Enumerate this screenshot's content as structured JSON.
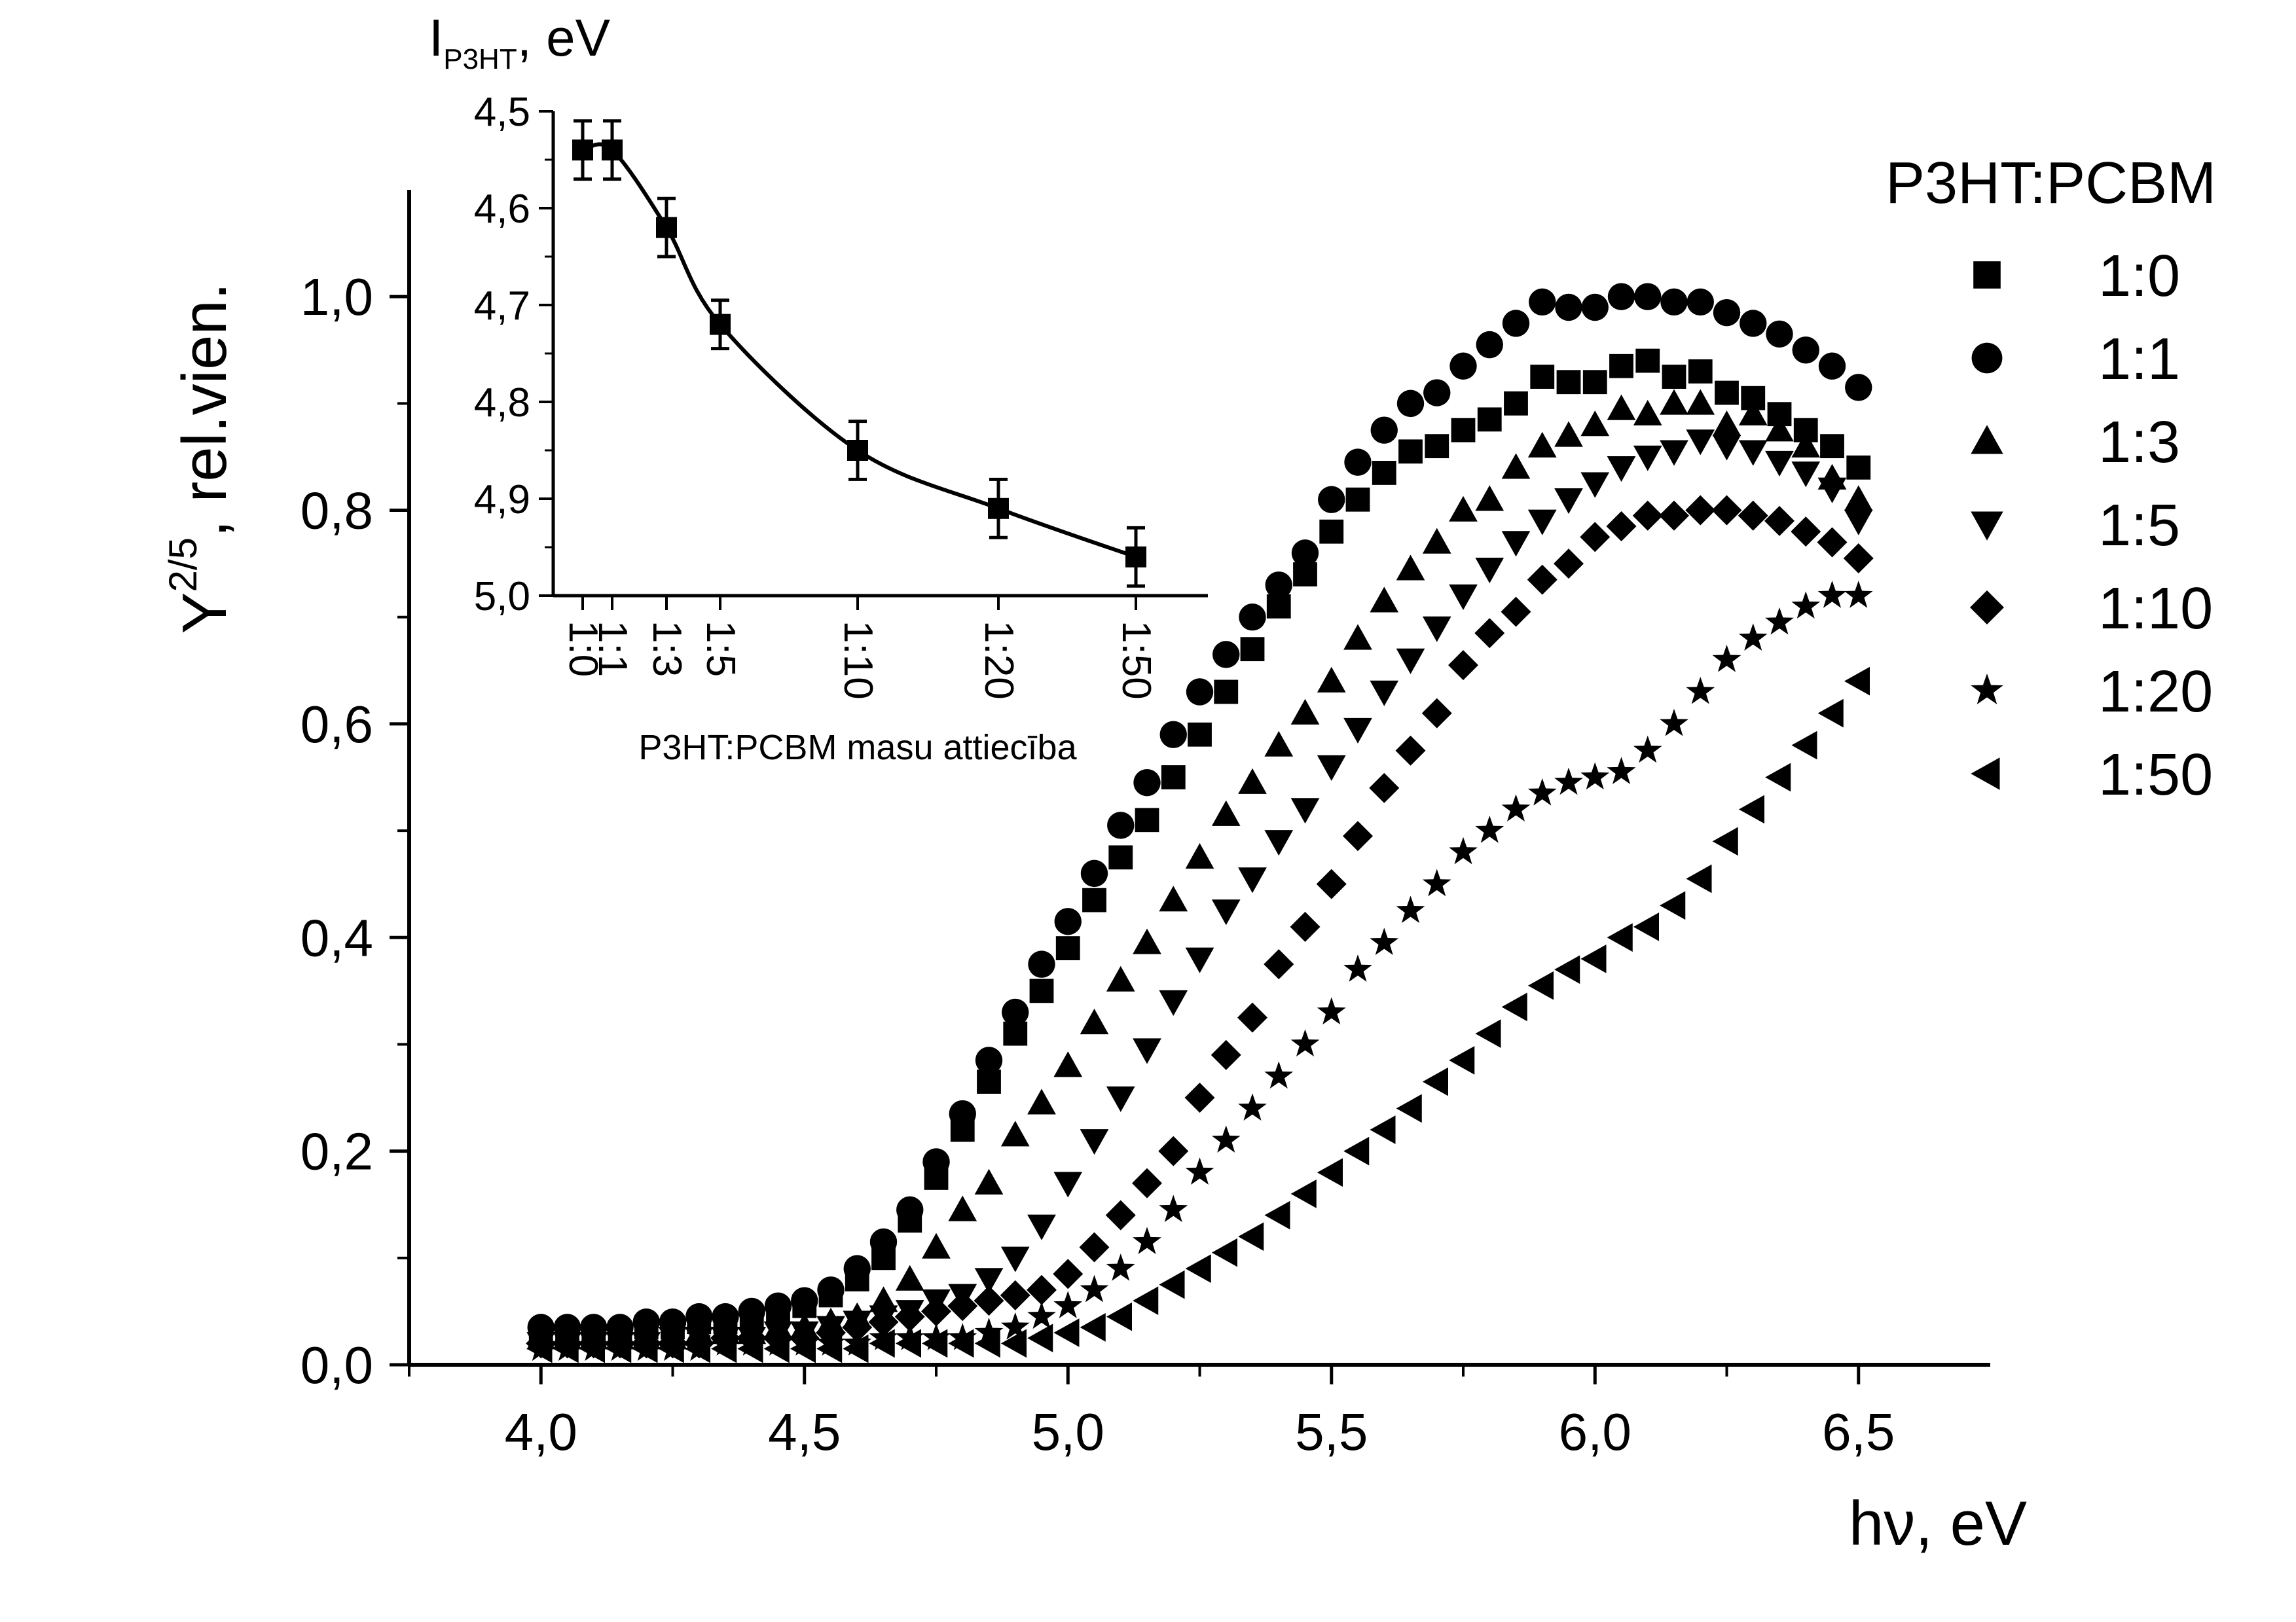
{
  "chart_data": {
    "main": {
      "type": "scatter",
      "xlabel": "hν, eV",
      "ylabel_main": "Y",
      "ylabel_sup": "2/5",
      "ylabel_rest": ", rel.vien.",
      "xlim": [
        3.75,
        6.75
      ],
      "ylim": [
        0.0,
        1.1
      ],
      "x_ticks": [
        4.0,
        4.5,
        5.0,
        5.5,
        6.0,
        6.5
      ],
      "x_tick_labels": [
        "4,0",
        "4,5",
        "5,0",
        "5,5",
        "6,0",
        "6,5"
      ],
      "y_ticks": [
        0.0,
        0.2,
        0.4,
        0.6,
        0.8,
        1.0
      ],
      "y_tick_labels": [
        "0,0",
        "0,2",
        "0,4",
        "0,6",
        "0,8",
        "1,0"
      ],
      "legend_title": "P3HT:PCBM",
      "legend_position": "right",
      "series": [
        {
          "name": "1:0",
          "marker": "square",
          "x": [
            4.0,
            4.05,
            4.1,
            4.15,
            4.2,
            4.25,
            4.3,
            4.35,
            4.4,
            4.45,
            4.5,
            4.55,
            4.6,
            4.65,
            4.7,
            4.75,
            4.8,
            4.85,
            4.9,
            4.95,
            5.0,
            5.05,
            5.1,
            5.15,
            5.2,
            5.25,
            5.3,
            5.35,
            5.4,
            5.45,
            5.5,
            5.55,
            5.6,
            5.65,
            5.7,
            5.75,
            5.8,
            5.85,
            5.9,
            5.95,
            6.0,
            6.05,
            6.1,
            6.15,
            6.2,
            6.25,
            6.3,
            6.35,
            6.4,
            6.45,
            6.5
          ],
          "y": [
            0.03,
            0.03,
            0.03,
            0.03,
            0.035,
            0.035,
            0.04,
            0.04,
            0.045,
            0.05,
            0.055,
            0.065,
            0.08,
            0.1,
            0.135,
            0.175,
            0.22,
            0.265,
            0.31,
            0.35,
            0.39,
            0.435,
            0.475,
            0.51,
            0.55,
            0.59,
            0.63,
            0.67,
            0.71,
            0.74,
            0.78,
            0.81,
            0.835,
            0.855,
            0.86,
            0.875,
            0.885,
            0.9,
            0.925,
            0.92,
            0.92,
            0.935,
            0.94,
            0.925,
            0.93,
            0.91,
            0.905,
            0.89,
            0.875,
            0.86,
            0.84
          ]
        },
        {
          "name": "1:1",
          "marker": "circle",
          "x": [
            4.0,
            4.05,
            4.1,
            4.15,
            4.2,
            4.25,
            4.3,
            4.35,
            4.4,
            4.45,
            4.5,
            4.55,
            4.6,
            4.65,
            4.7,
            4.75,
            4.8,
            4.85,
            4.9,
            4.95,
            5.0,
            5.05,
            5.1,
            5.15,
            5.2,
            5.25,
            5.3,
            5.35,
            5.4,
            5.45,
            5.5,
            5.55,
            5.6,
            5.65,
            5.7,
            5.75,
            5.8,
            5.85,
            5.9,
            5.95,
            6.0,
            6.05,
            6.1,
            6.15,
            6.2,
            6.25,
            6.3,
            6.35,
            6.4,
            6.45,
            6.5
          ],
          "y": [
            0.035,
            0.035,
            0.035,
            0.035,
            0.04,
            0.04,
            0.045,
            0.045,
            0.05,
            0.055,
            0.06,
            0.07,
            0.09,
            0.115,
            0.145,
            0.19,
            0.235,
            0.285,
            0.33,
            0.375,
            0.415,
            0.46,
            0.505,
            0.545,
            0.59,
            0.63,
            0.665,
            0.7,
            0.73,
            0.76,
            0.81,
            0.845,
            0.875,
            0.9,
            0.91,
            0.935,
            0.955,
            0.975,
            0.995,
            0.99,
            0.99,
            1.0,
            1.0,
            0.995,
            0.995,
            0.985,
            0.975,
            0.965,
            0.95,
            0.935,
            0.915
          ]
        },
        {
          "name": "1:3",
          "marker": "triangle-up",
          "x": [
            4.0,
            4.05,
            4.1,
            4.15,
            4.2,
            4.25,
            4.3,
            4.35,
            4.4,
            4.45,
            4.5,
            4.55,
            4.6,
            4.65,
            4.7,
            4.75,
            4.8,
            4.85,
            4.9,
            4.95,
            5.0,
            5.05,
            5.1,
            5.15,
            5.2,
            5.25,
            5.3,
            5.35,
            5.4,
            5.45,
            5.5,
            5.55,
            5.6,
            5.65,
            5.7,
            5.75,
            5.8,
            5.85,
            5.9,
            5.95,
            6.0,
            6.05,
            6.1,
            6.15,
            6.2,
            6.25,
            6.3,
            6.35,
            6.4,
            6.45,
            6.5
          ],
          "y": [
            0.025,
            0.025,
            0.025,
            0.025,
            0.025,
            0.025,
            0.03,
            0.03,
            0.03,
            0.035,
            0.035,
            0.04,
            0.045,
            0.06,
            0.08,
            0.11,
            0.145,
            0.17,
            0.215,
            0.245,
            0.28,
            0.32,
            0.36,
            0.395,
            0.435,
            0.475,
            0.515,
            0.545,
            0.58,
            0.61,
            0.64,
            0.68,
            0.715,
            0.745,
            0.77,
            0.8,
            0.81,
            0.84,
            0.86,
            0.87,
            0.88,
            0.895,
            0.89,
            0.9,
            0.9,
            0.88,
            0.89,
            0.875,
            0.86,
            0.83,
            0.81
          ]
        },
        {
          "name": "1:5",
          "marker": "triangle-down",
          "x": [
            4.0,
            4.05,
            4.1,
            4.15,
            4.2,
            4.25,
            4.3,
            4.35,
            4.4,
            4.45,
            4.5,
            4.55,
            4.6,
            4.65,
            4.7,
            4.75,
            4.8,
            4.85,
            4.9,
            4.95,
            5.0,
            5.05,
            5.1,
            5.15,
            5.2,
            5.25,
            5.3,
            5.35,
            5.4,
            5.45,
            5.5,
            5.55,
            5.6,
            5.65,
            5.7,
            5.75,
            5.8,
            5.85,
            5.9,
            5.95,
            6.0,
            6.05,
            6.1,
            6.15,
            6.2,
            6.25,
            6.3,
            6.35,
            6.4,
            6.45,
            6.5
          ],
          "y": [
            0.02,
            0.02,
            0.02,
            0.02,
            0.02,
            0.025,
            0.025,
            0.025,
            0.025,
            0.03,
            0.03,
            0.035,
            0.04,
            0.045,
            0.05,
            0.06,
            0.065,
            0.08,
            0.1,
            0.13,
            0.17,
            0.21,
            0.25,
            0.295,
            0.34,
            0.38,
            0.425,
            0.455,
            0.49,
            0.52,
            0.56,
            0.595,
            0.63,
            0.66,
            0.69,
            0.72,
            0.745,
            0.77,
            0.79,
            0.81,
            0.825,
            0.84,
            0.85,
            0.855,
            0.865,
            0.86,
            0.855,
            0.845,
            0.835,
            0.82,
            0.79
          ]
        },
        {
          "name": "1:10",
          "marker": "diamond",
          "x": [
            4.0,
            4.05,
            4.1,
            4.15,
            4.2,
            4.25,
            4.3,
            4.35,
            4.4,
            4.45,
            4.5,
            4.55,
            4.6,
            4.65,
            4.7,
            4.75,
            4.8,
            4.85,
            4.9,
            4.95,
            5.0,
            5.05,
            5.1,
            5.15,
            5.2,
            5.25,
            5.3,
            5.35,
            5.4,
            5.45,
            5.5,
            5.55,
            5.6,
            5.65,
            5.7,
            5.75,
            5.8,
            5.85,
            5.9,
            5.95,
            6.0,
            6.05,
            6.1,
            6.15,
            6.2,
            6.25,
            6.3,
            6.35,
            6.4,
            6.45,
            6.5
          ],
          "y": [
            0.02,
            0.02,
            0.02,
            0.02,
            0.02,
            0.02,
            0.02,
            0.025,
            0.025,
            0.025,
            0.025,
            0.03,
            0.035,
            0.04,
            0.045,
            0.05,
            0.055,
            0.06,
            0.065,
            0.07,
            0.085,
            0.11,
            0.14,
            0.17,
            0.2,
            0.25,
            0.29,
            0.325,
            0.375,
            0.41,
            0.45,
            0.495,
            0.54,
            0.575,
            0.61,
            0.655,
            0.685,
            0.705,
            0.735,
            0.75,
            0.775,
            0.785,
            0.795,
            0.795,
            0.8,
            0.8,
            0.795,
            0.79,
            0.78,
            0.77,
            0.755
          ]
        },
        {
          "name": "1:20",
          "marker": "star",
          "x": [
            4.0,
            4.05,
            4.1,
            4.15,
            4.2,
            4.25,
            4.3,
            4.35,
            4.4,
            4.45,
            4.5,
            4.55,
            4.6,
            4.65,
            4.7,
            4.75,
            4.8,
            4.85,
            4.9,
            4.95,
            5.0,
            5.05,
            5.1,
            5.15,
            5.2,
            5.25,
            5.3,
            5.35,
            5.4,
            5.45,
            5.5,
            5.55,
            5.6,
            5.65,
            5.7,
            5.75,
            5.8,
            5.85,
            5.9,
            5.95,
            6.0,
            6.05,
            6.1,
            6.15,
            6.2,
            6.25,
            6.3,
            6.35,
            6.4,
            6.45,
            6.5
          ],
          "y": [
            0.015,
            0.015,
            0.015,
            0.015,
            0.015,
            0.015,
            0.015,
            0.02,
            0.02,
            0.02,
            0.02,
            0.02,
            0.02,
            0.025,
            0.025,
            0.025,
            0.025,
            0.03,
            0.035,
            0.045,
            0.055,
            0.07,
            0.09,
            0.115,
            0.145,
            0.18,
            0.21,
            0.24,
            0.27,
            0.3,
            0.33,
            0.37,
            0.395,
            0.425,
            0.45,
            0.48,
            0.5,
            0.52,
            0.535,
            0.545,
            0.55,
            0.555,
            0.575,
            0.6,
            0.63,
            0.66,
            0.68,
            0.695,
            0.71,
            0.72,
            0.72
          ]
        },
        {
          "name": "1:50",
          "marker": "triangle-left",
          "x": [
            4.0,
            4.05,
            4.1,
            4.15,
            4.2,
            4.25,
            4.3,
            4.35,
            4.4,
            4.45,
            4.5,
            4.55,
            4.6,
            4.65,
            4.7,
            4.75,
            4.8,
            4.85,
            4.9,
            4.95,
            5.0,
            5.05,
            5.1,
            5.15,
            5.2,
            5.25,
            5.3,
            5.35,
            5.4,
            5.45,
            5.5,
            5.55,
            5.6,
            5.65,
            5.7,
            5.75,
            5.8,
            5.85,
            5.9,
            5.95,
            6.0,
            6.05,
            6.1,
            6.15,
            6.2,
            6.25,
            6.3,
            6.35,
            6.4,
            6.45,
            6.5
          ],
          "y": [
            0.015,
            0.015,
            0.015,
            0.015,
            0.015,
            0.015,
            0.015,
            0.015,
            0.015,
            0.015,
            0.015,
            0.015,
            0.015,
            0.02,
            0.02,
            0.02,
            0.02,
            0.02,
            0.02,
            0.025,
            0.03,
            0.035,
            0.045,
            0.06,
            0.075,
            0.09,
            0.105,
            0.12,
            0.14,
            0.16,
            0.18,
            0.2,
            0.22,
            0.24,
            0.265,
            0.285,
            0.31,
            0.335,
            0.355,
            0.37,
            0.38,
            0.4,
            0.41,
            0.43,
            0.455,
            0.49,
            0.52,
            0.55,
            0.58,
            0.61,
            0.64
          ]
        }
      ]
    },
    "inset": {
      "type": "scatter",
      "title_main": "I",
      "title_sub": "P3HT",
      "title_rest": ", eV",
      "xlabel": "P3HT:PCBM masu attiecība",
      "ylim": [
        4.5,
        5.0
      ],
      "y_inverted": true,
      "y_ticks": [
        4.5,
        4.6,
        4.7,
        4.8,
        4.9,
        5.0
      ],
      "y_tick_labels": [
        "4,5",
        "4,6",
        "4,7",
        "4,8",
        "4,9",
        "5,0"
      ],
      "x_ticks": [
        0,
        1,
        3,
        5,
        10,
        20,
        50
      ],
      "x_tick_labels": [
        "1:0",
        "1:1",
        "1:3",
        "1:5",
        "1:10",
        "1:20",
        "1:50"
      ],
      "x": [
        0,
        1,
        3,
        5,
        10,
        20,
        50
      ],
      "y": [
        4.54,
        4.54,
        4.62,
        4.72,
        4.85,
        4.91,
        4.96
      ],
      "yerr": [
        0.03,
        0.03,
        0.03,
        0.025,
        0.03,
        0.03,
        0.03
      ],
      "fit_curve": true
    }
  }
}
